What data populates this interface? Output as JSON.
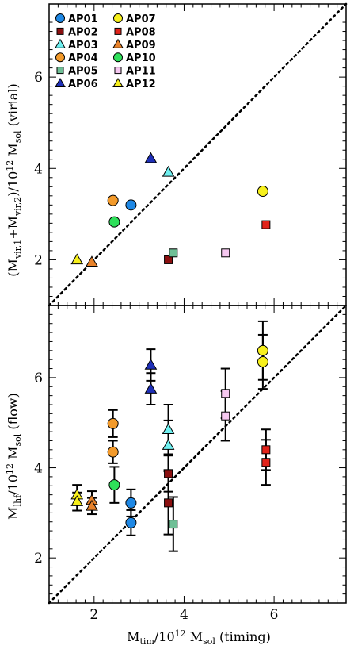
{
  "chart_data": [
    {
      "type": "scatter",
      "panel": "top",
      "xlim": [
        1.0,
        7.6
      ],
      "ylim": [
        1.0,
        7.6
      ],
      "yticks": [
        2,
        4,
        6
      ],
      "ylabel": "(M_vir,1 + M_vir,2)/10^12 M_sol (virial)",
      "ylabel_parts": {
        "open": "(M",
        "s1": "vir,1",
        "plus": "+M",
        "s2": "vir,2",
        "mid": ")/10",
        "exp": "12",
        "m": " M",
        "s3": "sol",
        "tail": "  (virial)"
      },
      "reference_line": "y = x (dotted)",
      "legend": {
        "position": "top-left",
        "columns": 2
      },
      "series": [
        {
          "name": "AP01",
          "marker": "circle",
          "color": "#1e88e5",
          "points": [
            [
              2.82,
              3.2
            ]
          ]
        },
        {
          "name": "AP02",
          "marker": "square",
          "color": "#8b1010",
          "points": [
            [
              3.65,
              2.0
            ]
          ]
        },
        {
          "name": "AP03",
          "marker": "triangle",
          "color": "#6ff0f0",
          "points": [
            [
              3.65,
              3.92
            ]
          ]
        },
        {
          "name": "AP04",
          "marker": "circle",
          "color": "#f39a2a",
          "points": [
            [
              2.42,
              3.3
            ]
          ]
        },
        {
          "name": "AP05",
          "marker": "square",
          "color": "#6fbf96",
          "points": [
            [
              3.76,
              2.15
            ]
          ]
        },
        {
          "name": "AP06",
          "marker": "triangle",
          "color": "#1e2fb8",
          "points": [
            [
              3.26,
              4.22
            ]
          ]
        },
        {
          "name": "AP07",
          "marker": "circle",
          "color": "#f7f01c",
          "points": [
            [
              5.75,
              3.5
            ]
          ]
        },
        {
          "name": "AP08",
          "marker": "square",
          "color": "#e2231a",
          "points": [
            [
              5.82,
              2.77
            ]
          ]
        },
        {
          "name": "AP09",
          "marker": "triangle",
          "color": "#e8822a",
          "points": [
            [
              1.95,
              1.95
            ]
          ]
        },
        {
          "name": "AP10",
          "marker": "circle",
          "color": "#2ee05a",
          "points": [
            [
              2.45,
              2.83
            ]
          ]
        },
        {
          "name": "AP11",
          "marker": "square",
          "color": "#f6c8f0",
          "points": [
            [
              4.92,
              2.15
            ]
          ]
        },
        {
          "name": "AP12",
          "marker": "triangle",
          "color": "#f7f01c",
          "points": [
            [
              1.62,
              2.0
            ]
          ]
        }
      ]
    },
    {
      "type": "scatter",
      "panel": "bottom",
      "xlim": [
        1.0,
        7.6
      ],
      "ylim": [
        1.0,
        7.6
      ],
      "xticks": [
        2,
        4,
        6
      ],
      "yticks": [
        2,
        4,
        6
      ],
      "xlabel": "M_tim/10^12 M_sol (timing)",
      "xlabel_parts": {
        "m": "M",
        "s1": "tim",
        "mid": "/10",
        "exp": "12",
        "m2": " M",
        "s2": "sol",
        "tail": "  (timing)"
      },
      "ylabel": "M_lhf/10^12 M_sol (flow)",
      "ylabel_parts": {
        "m": "M",
        "s1": "lhf",
        "mid": "/10",
        "exp": "12",
        "m2": " M",
        "s2": "sol",
        "tail": "  (flow)"
      },
      "reference_line": "y = x (dotted)",
      "series": [
        {
          "name": "AP01",
          "marker": "circle",
          "color": "#1e88e5",
          "points": [
            [
              2.82,
              3.22,
              0.3
            ],
            [
              2.82,
              2.78,
              0.28
            ]
          ]
        },
        {
          "name": "AP02",
          "marker": "square",
          "color": "#8b1010",
          "points": [
            [
              3.65,
              3.87,
              0.4
            ],
            [
              3.65,
              3.22,
              0.7
            ]
          ]
        },
        {
          "name": "AP03",
          "marker": "triangle",
          "color": "#6ff0f0",
          "points": [
            [
              3.65,
              4.85,
              0.55
            ],
            [
              3.65,
              4.5,
              0.55
            ]
          ]
        },
        {
          "name": "AP04",
          "marker": "circle",
          "color": "#f39a2a",
          "points": [
            [
              2.42,
              4.98,
              0.3
            ],
            [
              2.42,
              4.35,
              0.25
            ]
          ]
        },
        {
          "name": "AP05",
          "marker": "square",
          "color": "#6fbf96",
          "points": [
            [
              3.76,
              2.75,
              0.6
            ]
          ]
        },
        {
          "name": "AP06",
          "marker": "triangle",
          "color": "#1e2fb8",
          "points": [
            [
              3.26,
              6.28,
              0.35
            ],
            [
              3.26,
              5.75,
              0.35
            ]
          ]
        },
        {
          "name": "AP07",
          "marker": "circle",
          "color": "#f7f01c",
          "points": [
            [
              5.75,
              6.6,
              0.65
            ],
            [
              5.75,
              6.35,
              0.6
            ]
          ]
        },
        {
          "name": "AP08",
          "marker": "square",
          "color": "#e2231a",
          "points": [
            [
              5.82,
              4.4,
              0.45
            ],
            [
              5.82,
              4.12,
              0.5
            ]
          ]
        },
        {
          "name": "AP09",
          "marker": "triangle",
          "color": "#e8822a",
          "points": [
            [
              1.95,
              3.28,
              0.2
            ],
            [
              1.95,
              3.15,
              0.18
            ]
          ]
        },
        {
          "name": "AP10",
          "marker": "circle",
          "color": "#2ee05a",
          "points": [
            [
              2.45,
              3.62,
              0.4
            ]
          ]
        },
        {
          "name": "AP11",
          "marker": "square",
          "color": "#f6c8f0",
          "points": [
            [
              4.92,
              5.65,
              0.55
            ],
            [
              4.92,
              5.15,
              0.55
            ]
          ]
        },
        {
          "name": "AP12",
          "marker": "triangle",
          "color": "#f7f01c",
          "points": [
            [
              1.62,
              3.4,
              0.22
            ],
            [
              1.62,
              3.25,
              0.2
            ]
          ]
        }
      ]
    }
  ]
}
